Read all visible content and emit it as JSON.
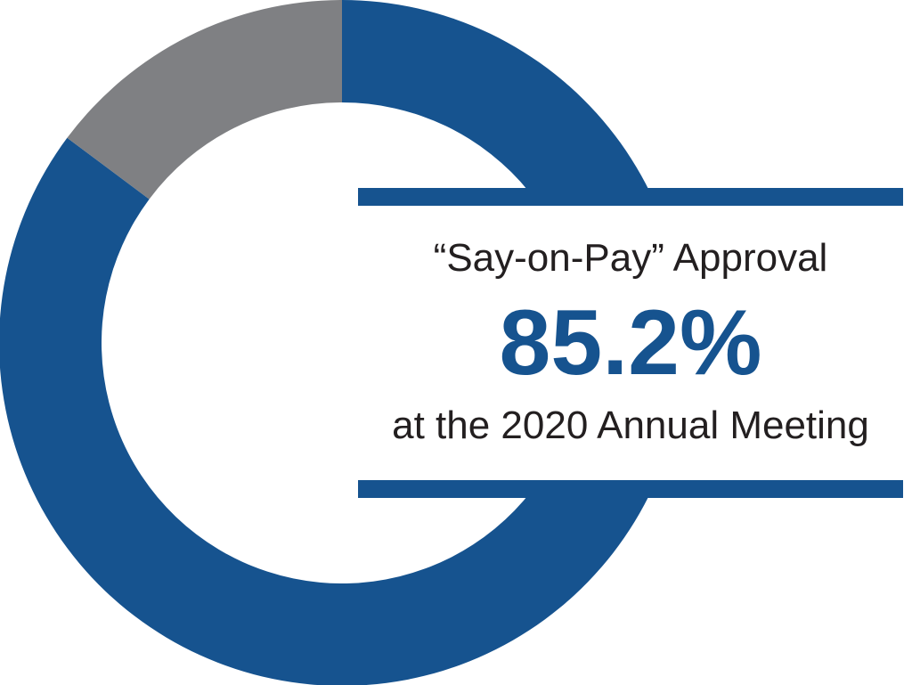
{
  "chart_data": {
    "type": "pie",
    "variant": "donut",
    "slices": [
      {
        "label": "Approval",
        "value": 85.2,
        "color": "#16538f"
      },
      {
        "label": "",
        "value": 14.8,
        "color": "#7f8083"
      }
    ],
    "start": "top, clockwise"
  },
  "annotation": {
    "headline": "“Say-on-Pay” Approval",
    "value_label": "85.2%",
    "subline": "at the 2020 Annual Meeting"
  },
  "colors": {
    "accent": "#16538f",
    "neutral": "#7f8083",
    "text": "#231f20"
  }
}
